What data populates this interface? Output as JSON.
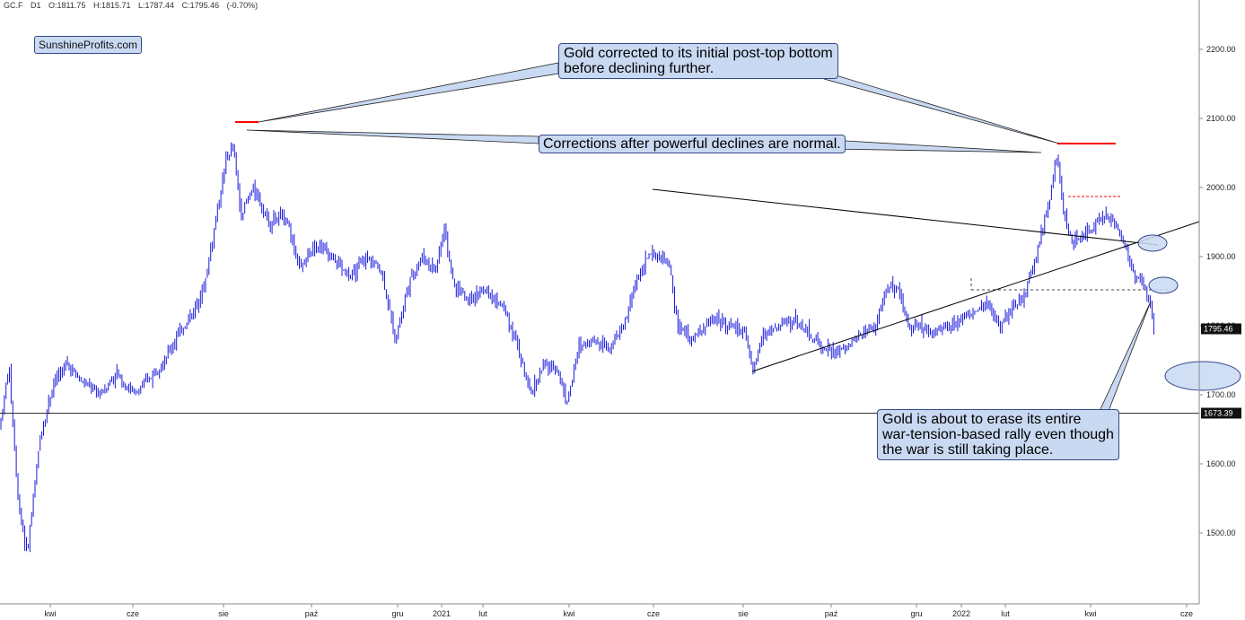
{
  "header": {
    "symbol": "GC.F",
    "timeframe": "D1",
    "open": "O:1811.75",
    "high": "H:1815.71",
    "low": "L:1787.44",
    "close": "C:1795.46",
    "change": "(-0.70%)"
  },
  "brand": "SunshineProfits.com",
  "annotations": {
    "top": "Gold corrected to its initial post-top bottom\nbefore declining further.",
    "middle": "Corrections after powerful declines are normal.",
    "bottom": "Gold is about to erase its entire\nwar-tension-based rally even though\nthe war is still taking place."
  },
  "colors": {
    "candles": "#1a1adb",
    "accent_red": "#ff0000",
    "callout_fill": "#c9d9f2",
    "callout_border": "#34488a",
    "trendline": "#000000"
  },
  "chart_data": {
    "type": "candlestick",
    "instrument": "GC.F",
    "y_axis": {
      "ticks": [
        1500,
        1600,
        1700,
        1800,
        1900,
        2000,
        2100,
        2200
      ],
      "tick_labels": [
        "1500.00",
        "1600.00",
        "1700.00",
        "1800.00",
        "1900.00",
        "2000.00",
        "2100.00",
        "2200.00"
      ],
      "range": [
        1420,
        2210
      ]
    },
    "x_axis": {
      "tick_labels": [
        "kwi",
        "cze",
        "sie",
        "paź",
        "gru",
        "2021",
        "lut",
        "kwi",
        "cze",
        "sie",
        "paź",
        "gru",
        "2022",
        "lut",
        "kwi",
        "cze"
      ]
    },
    "close_path": [
      [
        0,
        1655
      ],
      [
        10,
        1740
      ],
      [
        20,
        1550
      ],
      [
        30,
        1470
      ],
      [
        45,
        1640
      ],
      [
        60,
        1720
      ],
      [
        75,
        1745
      ],
      [
        90,
        1720
      ],
      [
        110,
        1700
      ],
      [
        130,
        1730
      ],
      [
        150,
        1700
      ],
      [
        170,
        1730
      ],
      [
        185,
        1755
      ],
      [
        200,
        1790
      ],
      [
        215,
        1820
      ],
      [
        228,
        1860
      ],
      [
        240,
        1950
      ],
      [
        252,
        2040
      ],
      [
        260,
        2060
      ],
      [
        268,
        1960
      ],
      [
        282,
        2000
      ],
      [
        300,
        1950
      ],
      [
        318,
        1960
      ],
      [
        335,
        1880
      ],
      [
        350,
        1920
      ],
      [
        370,
        1900
      ],
      [
        390,
        1870
      ],
      [
        410,
        1900
      ],
      [
        425,
        1880
      ],
      [
        440,
        1780
      ],
      [
        455,
        1860
      ],
      [
        470,
        1900
      ],
      [
        485,
        1880
      ],
      [
        495,
        1940
      ],
      [
        505,
        1860
      ],
      [
        520,
        1840
      ],
      [
        540,
        1850
      ],
      [
        560,
        1830
      ],
      [
        575,
        1780
      ],
      [
        590,
        1700
      ],
      [
        605,
        1740
      ],
      [
        620,
        1740
      ],
      [
        632,
        1690
      ],
      [
        645,
        1770
      ],
      [
        660,
        1780
      ],
      [
        680,
        1770
      ],
      [
        695,
        1800
      ],
      [
        710,
        1870
      ],
      [
        722,
        1900
      ],
      [
        732,
        1900
      ],
      [
        745,
        1890
      ],
      [
        755,
        1800
      ],
      [
        770,
        1780
      ],
      [
        785,
        1800
      ],
      [
        800,
        1810
      ],
      [
        815,
        1800
      ],
      [
        830,
        1790
      ],
      [
        838,
        1730
      ],
      [
        850,
        1790
      ],
      [
        870,
        1800
      ],
      [
        885,
        1810
      ],
      [
        900,
        1790
      ],
      [
        915,
        1770
      ],
      [
        930,
        1760
      ],
      [
        945,
        1770
      ],
      [
        960,
        1790
      ],
      [
        975,
        1800
      ],
      [
        990,
        1860
      ],
      [
        1000,
        1850
      ],
      [
        1012,
        1800
      ],
      [
        1025,
        1800
      ],
      [
        1040,
        1790
      ],
      [
        1055,
        1800
      ],
      [
        1070,
        1810
      ],
      [
        1085,
        1820
      ],
      [
        1100,
        1830
      ],
      [
        1115,
        1800
      ],
      [
        1125,
        1820
      ],
      [
        1140,
        1840
      ],
      [
        1152,
        1890
      ],
      [
        1163,
        1950
      ],
      [
        1172,
        2000
      ],
      [
        1177,
        2050
      ],
      [
        1185,
        1960
      ],
      [
        1195,
        1920
      ],
      [
        1210,
        1930
      ],
      [
        1222,
        1950
      ],
      [
        1232,
        1960
      ],
      [
        1240,
        1950
      ],
      [
        1250,
        1930
      ],
      [
        1262,
        1880
      ],
      [
        1272,
        1860
      ],
      [
        1280,
        1840
      ],
      [
        1286,
        1795
      ]
    ],
    "levels": {
      "support_line": 1673.39,
      "last_close": 1795.46
    },
    "price_labels": [
      "1795.46",
      "1673.39"
    ]
  }
}
